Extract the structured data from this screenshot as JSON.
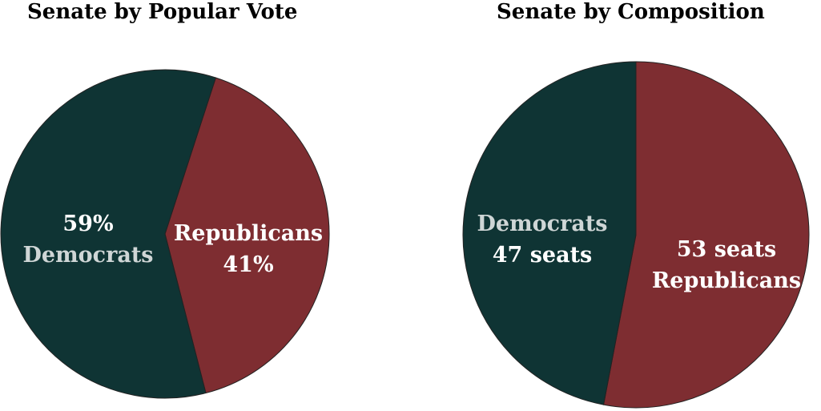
{
  "chart_data": [
    {
      "type": "pie",
      "title": "Senate by Popular Vote",
      "slices": [
        {
          "name": "Democrats",
          "value": 59,
          "color": "#0f3434",
          "label_lines": [
            "59%",
            "Democrats"
          ],
          "label_colors": [
            "#ffffff",
            "#cfd6d6"
          ]
        },
        {
          "name": "Republicans",
          "value": 41,
          "color": "#7e2d31",
          "label_lines": [
            "Republicans",
            "41%"
          ],
          "label_colors": [
            "#ffffff",
            "#ffffff"
          ]
        }
      ]
    },
    {
      "type": "pie",
      "title": "Senate by Composition",
      "slices": [
        {
          "name": "Democrats",
          "value": 47,
          "color": "#0f3434",
          "label_lines": [
            "Democrats",
            "47 seats"
          ],
          "label_colors": [
            "#cfd6d6",
            "#ffffff"
          ]
        },
        {
          "name": "Republicans",
          "value": 53,
          "color": "#7e2d31",
          "label_lines": [
            "53 seats",
            "Republicans"
          ],
          "label_colors": [
            "#ffffff",
            "#ffffff"
          ]
        }
      ]
    }
  ]
}
